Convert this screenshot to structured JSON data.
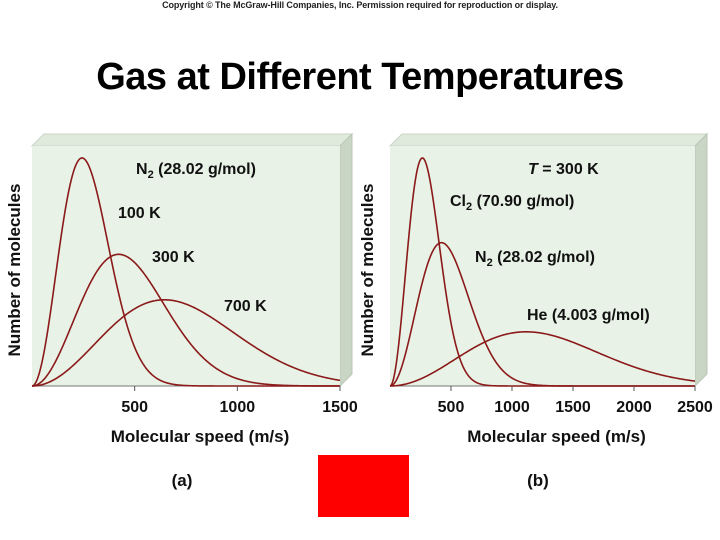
{
  "copyright": "Copyright © The McGraw-Hill Companies, Inc. Permission required for reproduction or display.",
  "title": "Gas at Different Temperatures",
  "colors": {
    "panel_bg": "#e8f2e6",
    "curve": "#8b1a1a",
    "highlight_box": "#ff0000"
  },
  "chart_data": [
    {
      "type": "line",
      "panel_label": "(a)",
      "xlabel": "Molecular speed (m/s)",
      "ylabel": "Number of molecules",
      "xlim": [
        0,
        1500
      ],
      "ylim": [
        0,
        1
      ],
      "x_ticks": [
        500,
        1000,
        1500
      ],
      "y_ticks_shown": false,
      "grid": false,
      "annotation_title": {
        "text": "N",
        "sub": "2",
        "rest": " (28.02 g/mol)"
      },
      "series": [
        {
          "name": "100 K",
          "mass": 0.02802,
          "temperature": 100
        },
        {
          "name": "300 K",
          "mass": 0.02802,
          "temperature": 300
        },
        {
          "name": "700 K",
          "mass": 0.02802,
          "temperature": 700
        }
      ]
    },
    {
      "type": "line",
      "panel_label": "(b)",
      "xlabel": "Molecular speed (m/s)",
      "ylabel": "Number of molecules",
      "xlim": [
        0,
        2500
      ],
      "ylim": [
        0,
        1
      ],
      "x_ticks": [
        500,
        1000,
        1500,
        2000,
        2500
      ],
      "y_ticks_shown": false,
      "grid": false,
      "annotation_title": {
        "italic": "T",
        "rest": " = 300 K"
      },
      "series": [
        {
          "name": "Cl",
          "sub": "2",
          "rest": " (70.90 g/mol)",
          "mass": 0.0709,
          "temperature": 300
        },
        {
          "name": "N",
          "sub": "2",
          "rest": " (28.02 g/mol)",
          "mass": 0.02802,
          "temperature": 300
        },
        {
          "name": "He",
          "sub": "",
          "rest": " (4.003 g/mol)",
          "mass": 0.004003,
          "temperature": 300
        }
      ]
    }
  ]
}
